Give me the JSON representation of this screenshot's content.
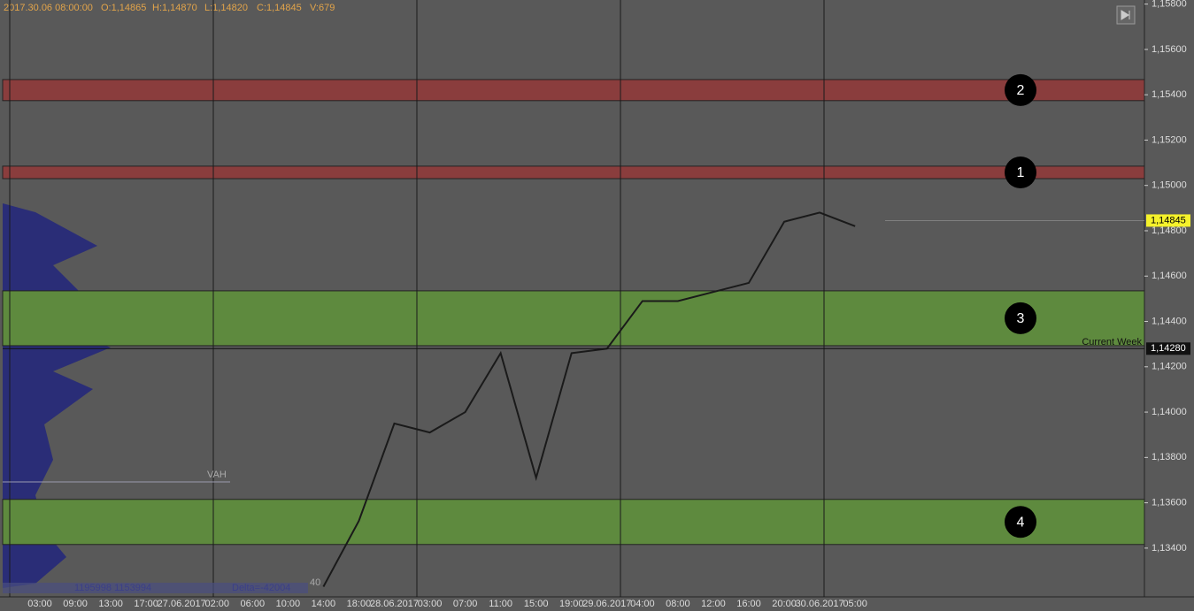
{
  "chart_data": {
    "type": "line",
    "header": {
      "time": "2017.30.06 08:00:00",
      "open": "O:1,14865",
      "high": "H:1,14870",
      "low": "L:1,14820",
      "close": "C:1,14845",
      "volume": "V:679"
    },
    "categories": [
      "03:00",
      "09:00",
      "13:00",
      "17:00",
      "27.06.2017",
      "02:00",
      "06:00",
      "10:00",
      "14:00",
      "18:00",
      "28.06.2017",
      "03:00",
      "07:00",
      "11:00",
      "15:00",
      "19:00",
      "29.06.2017",
      "04:00",
      "08:00",
      "12:00",
      "16:00",
      "20:00",
      "30.06.2017",
      "05:00"
    ],
    "series": [
      {
        "name": "Price",
        "color": "#1a1a1a",
        "values": [
          null,
          null,
          null,
          null,
          null,
          null,
          null,
          null,
          1.1323,
          1.1352,
          1.1395,
          1.1391,
          1.14,
          1.1426,
          1.1371,
          1.1426,
          1.1428,
          1.1449,
          1.1449,
          1.1453,
          1.1457,
          1.1484,
          1.1488,
          1.1482
        ]
      }
    ],
    "ylim": [
      1.13185,
      1.15818
    ],
    "yticks": [
      {
        "value": 1.158,
        "label": "1,15800"
      },
      {
        "value": 1.156,
        "label": "1,15600"
      },
      {
        "value": 1.154,
        "label": "1,15400"
      },
      {
        "value": 1.152,
        "label": "1,15200"
      },
      {
        "value": 1.15,
        "label": "1,15000"
      },
      {
        "value": 1.148,
        "label": "1,14800"
      },
      {
        "value": 1.146,
        "label": "1,14600"
      },
      {
        "value": 1.144,
        "label": "1,14400"
      },
      {
        "value": 1.142,
        "label": "1,14200"
      },
      {
        "value": 1.14,
        "label": "1,14000"
      },
      {
        "value": 1.138,
        "label": "1,13800"
      },
      {
        "value": 1.136,
        "label": "1,13600"
      },
      {
        "value": 1.134,
        "label": "1,13400"
      }
    ],
    "zones": [
      {
        "label": "2",
        "range": [
          1.15374,
          1.15467
        ],
        "color": "#8a3d3d"
      },
      {
        "label": "1",
        "range": [
          1.1503,
          1.15085
        ],
        "color": "#8a3d3d"
      },
      {
        "label": "3",
        "range": [
          1.14293,
          1.14535
        ],
        "color": "#5e8a3e"
      },
      {
        "label": "4",
        "range": [
          1.13416,
          1.13615
        ],
        "color": "#5e8a3e"
      }
    ],
    "last_price": {
      "value": 1.14845,
      "label": "1,14845"
    },
    "current_week": {
      "name": "Current Week",
      "value": 1.1428,
      "label": "1,14280"
    },
    "annotations": {
      "vah": "VAH",
      "volumes": "1195998 1153994",
      "delta": "Delta=-42004",
      "count": "40"
    }
  }
}
